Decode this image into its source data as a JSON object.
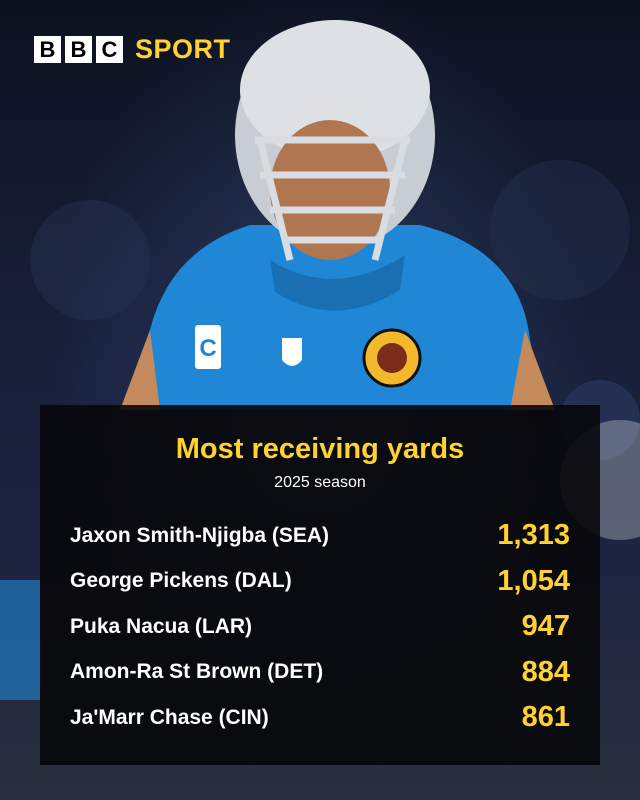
{
  "brand": {
    "bbc_letters": [
      "B",
      "B",
      "C"
    ],
    "sport": "SPORT",
    "accent_color": "#ffd230"
  },
  "panel": {
    "title": "Most receiving yards",
    "subtitle": "2025 season"
  },
  "leaders": [
    {
      "player": "Jaxon Smith-Njigba (SEA)",
      "yards": "1,313"
    },
    {
      "player": "George Pickens (DAL)",
      "yards": "1,054"
    },
    {
      "player": "Puka Nacua (LAR)",
      "yards": "947"
    },
    {
      "player": "Amon-Ra St Brown (DET)",
      "yards": "884"
    },
    {
      "player": "Ja'Marr Chase (CIN)",
      "yards": "861"
    }
  ]
}
